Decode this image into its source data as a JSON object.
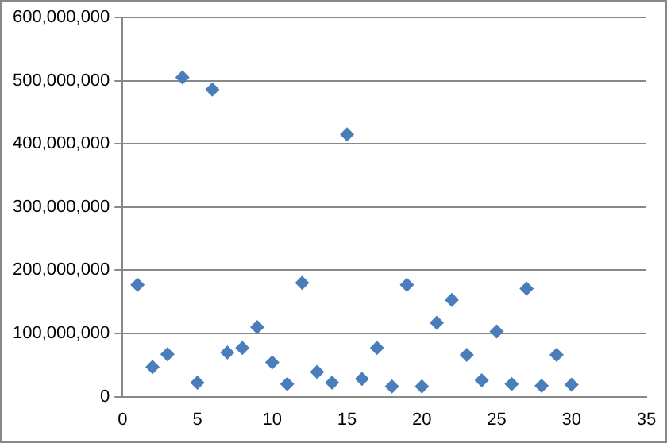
{
  "chart_data": {
    "type": "scatter",
    "x": [
      1,
      2,
      3,
      4,
      5,
      6,
      7,
      8,
      9,
      10,
      11,
      12,
      13,
      14,
      15,
      16,
      17,
      18,
      19,
      20,
      21,
      22,
      23,
      24,
      25,
      26,
      27,
      28,
      29,
      30
    ],
    "series": [
      {
        "color": "#4a7ebb",
        "values": [
          177000000,
          47000000,
          67000000,
          505000000,
          22000000,
          486000000,
          70000000,
          77000000,
          110000000,
          54000000,
          20000000,
          180000000,
          39000000,
          22000000,
          415000000,
          28000000,
          77000000,
          16000000,
          177000000,
          16000000,
          117000000,
          153000000,
          66000000,
          26000000,
          103000000,
          20000000,
          171000000,
          17000000,
          66000000,
          19000000
        ]
      }
    ],
    "xlim": [
      0,
      35
    ],
    "xticks": [
      0,
      5,
      10,
      15,
      20,
      25,
      30,
      35
    ],
    "ylim": [
      0,
      600000000
    ],
    "yticks": [
      0,
      {
        "value": 100000000,
        "label": "100,000,000"
      },
      {
        "value": 200000000,
        "label": "200,000,000"
      },
      {
        "value": 300000000,
        "label": "300,000,000"
      },
      {
        "value": 400000000,
        "label": "400,000,000"
      },
      {
        "value": 500000000,
        "label": "500,000,000"
      },
      {
        "value": 600000000,
        "label": "600,000,000"
      }
    ],
    "grid": "y",
    "marker": "diamond",
    "legend": false
  }
}
